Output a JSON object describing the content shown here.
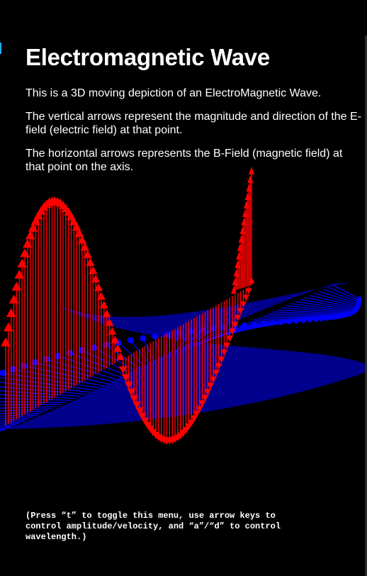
{
  "menu": {
    "title": "Electromagnetic Wave",
    "paragraphs": [
      "This is a 3D moving depiction of an ElectroMagnetic Wave.",
      "The vertical arrows represent the magnitude and direction of the E-field (electric field) at that point.",
      "The horizontal arrows represents the B-Field (magnetic field) at that point on the axis."
    ],
    "help": "(Press “t” to toggle this menu, use arrow keys to control amplitude/velocity, and “a”/“d” to control wavelength.)"
  },
  "colors": {
    "background": "#000000",
    "e_field": "#ff0000",
    "b_field": "#0000ff",
    "text": "#ffffff"
  },
  "icons": {
    "e_field_arrow": "arrow-up-icon",
    "b_field_arrow": "arrow-side-icon"
  }
}
